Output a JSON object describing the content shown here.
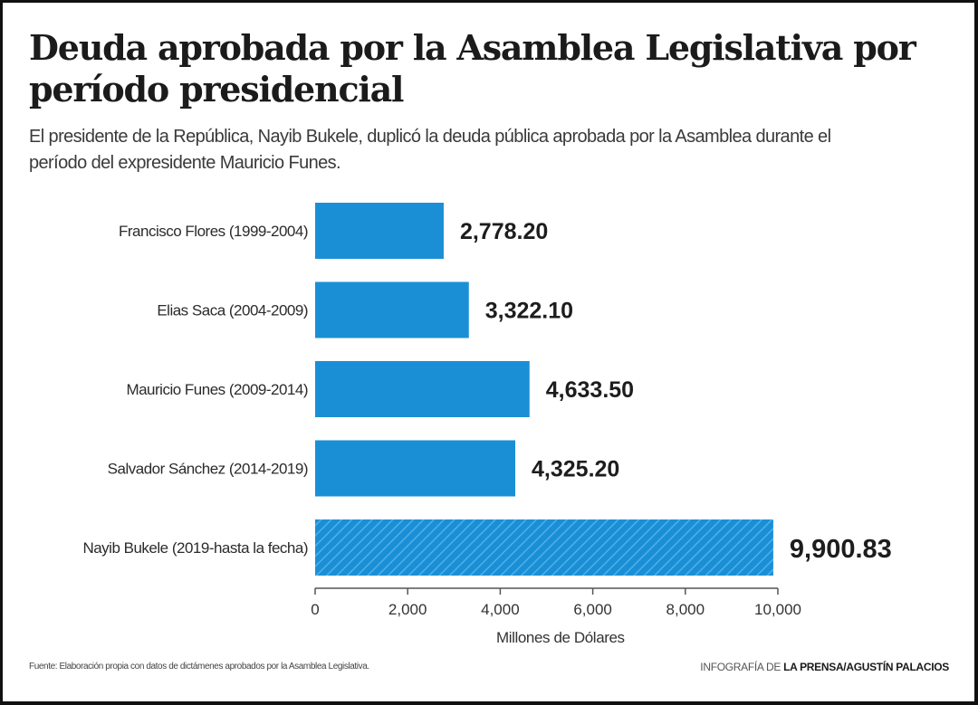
{
  "header": {
    "title": "Deuda aprobada por la Asamblea Legislativa por período presidencial",
    "subtitle": "El presidente de la República, Nayib Bukele, duplicó la deuda pública aprobada por la Asamblea durante el período del expresidente Mauricio Funes."
  },
  "footer": {
    "source": "Fuente: Elaboración propia con datos de dictámenes aprobados por la Asamblea Legislativa.",
    "credit_prefix": "INFOGRAFÍA DE ",
    "credit_bold": "LA PRENSA/AGUSTÍN PALACIOS"
  },
  "colors": {
    "bar": "#1a8fd6",
    "hatch_stripe": "#4fb0e8",
    "text": "#1a1a1a"
  },
  "chart_data": {
    "type": "bar",
    "orientation": "horizontal",
    "categories": [
      "Francisco Flores (1999-2004)",
      "Elias Saca (2004-2009)",
      "Mauricio Funes (2009-2014)",
      "Salvador Sánchez (2014-2019)",
      "Nayib Bukele (2019-hasta la fecha)"
    ],
    "values": [
      2778.2,
      3322.1,
      4633.5,
      4325.2,
      9900.83
    ],
    "value_labels": [
      "2,778.20",
      "3,322.10",
      "4,633.50",
      "4,325.20",
      "9,900.83"
    ],
    "highlight_index": 4,
    "xlabel": "Millones de Dólares",
    "xlim": [
      0,
      10000
    ],
    "xticks": [
      0,
      2000,
      4000,
      6000,
      8000,
      10000
    ],
    "xtick_labels": [
      "0",
      "2,000",
      "4,000",
      "6,000",
      "8,000",
      "10,000"
    ],
    "grid": false,
    "legend": "none"
  }
}
